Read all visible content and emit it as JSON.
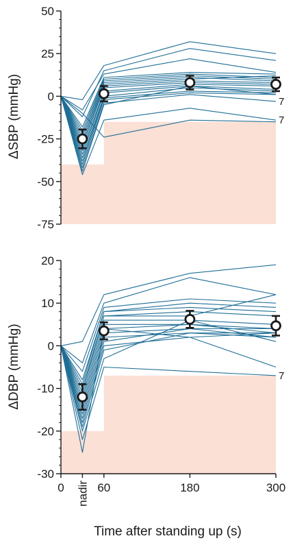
{
  "colors": {
    "subject_line": "#1f6e96",
    "threshold_fill": "#fbe0d6",
    "mean_marker_fill": "#ffffff",
    "mean_marker_stroke": "#1a1a1a",
    "axis": "#1a1a1a"
  },
  "chart_data": [
    {
      "type": "line",
      "title": "",
      "ylabel": "ΔSBP (mmHg)",
      "xlabel": "",
      "x_values": [
        0,
        30,
        60,
        180,
        300
      ],
      "x_tick_values": [
        0,
        30,
        60,
        180,
        300
      ],
      "x_tick_labels": [
        "0",
        "nadir",
        "60",
        "180",
        "300"
      ],
      "ylim": [
        -75,
        50
      ],
      "y_ticks": [
        -75,
        -50,
        -25,
        0,
        25,
        50
      ],
      "y_minor_step": 5,
      "threshold_region": [
        {
          "x_from": 0,
          "x_to": 60,
          "y_upper": -40
        },
        {
          "x_from": 60,
          "x_to": 300,
          "y_upper": -15
        }
      ],
      "subjects": [
        [
          0,
          -2,
          18,
          32,
          25
        ],
        [
          0,
          -12,
          15,
          28,
          21
        ],
        [
          0,
          -8,
          13,
          22,
          14
        ],
        [
          0,
          -18,
          11,
          14,
          13
        ],
        [
          0,
          -20,
          10,
          13,
          11
        ],
        [
          0,
          -22,
          9,
          12,
          10
        ],
        [
          0,
          -24,
          8,
          11,
          9
        ],
        [
          0,
          -26,
          7,
          10,
          12
        ],
        [
          0,
          -28,
          6,
          9,
          8
        ],
        [
          0,
          -30,
          5,
          8,
          7
        ],
        [
          0,
          -32,
          3,
          7,
          6
        ],
        [
          0,
          -34,
          2,
          6,
          4
        ],
        [
          0,
          -36,
          0,
          5,
          3
        ],
        [
          0,
          -38,
          -1,
          3,
          2
        ],
        [
          0,
          -40,
          -2,
          2,
          1
        ],
        [
          0,
          -42,
          -4,
          1,
          -3
        ],
        [
          0,
          -44,
          -5,
          6,
          1
        ],
        [
          0,
          -46,
          -14,
          -7,
          -14
        ],
        [
          0,
          -10,
          -24,
          -14,
          -15
        ]
      ],
      "mean": {
        "x": [
          30,
          60,
          180,
          300
        ],
        "y": [
          -25,
          1.5,
          8,
          7
        ],
        "error": [
          5.5,
          4.5,
          4,
          4
        ]
      },
      "annotations": [
        {
          "text": "7",
          "x": 300,
          "y": -3
        },
        {
          "text": "7",
          "x": 300,
          "y": -14
        }
      ]
    },
    {
      "type": "line",
      "title": "",
      "ylabel": "ΔDBP (mmHg)",
      "xlabel": "Time after standing up (s)",
      "x_values": [
        0,
        30,
        60,
        180,
        300
      ],
      "x_tick_values": [
        0,
        30,
        60,
        180,
        300
      ],
      "x_tick_labels": [
        "0",
        "nadir",
        "60",
        "180",
        "300"
      ],
      "ylim": [
        -30,
        20
      ],
      "y_ticks": [
        -30,
        -20,
        -10,
        0,
        10,
        20
      ],
      "y_minor_step": 2,
      "threshold_region": [
        {
          "x_from": 0,
          "x_to": 60,
          "y_upper": -20
        },
        {
          "x_from": 60,
          "x_to": 300,
          "y_upper": -7
        }
      ],
      "subjects": [
        [
          0,
          1,
          12,
          17,
          19
        ],
        [
          0,
          -4,
          10,
          16,
          12
        ],
        [
          0,
          -6,
          9,
          11,
          10
        ],
        [
          0,
          -8,
          8,
          10,
          9
        ],
        [
          0,
          -9,
          8,
          9,
          8
        ],
        [
          0,
          -10,
          7,
          8,
          7
        ],
        [
          0,
          -11,
          7,
          7,
          12
        ],
        [
          0,
          -12,
          6,
          6,
          5
        ],
        [
          0,
          -13,
          5,
          5,
          4
        ],
        [
          0,
          -14,
          4,
          5,
          3
        ],
        [
          0,
          -15,
          3,
          4,
          4
        ],
        [
          0,
          -16,
          2,
          3,
          3
        ],
        [
          0,
          -17,
          1,
          4,
          2
        ],
        [
          0,
          -18,
          0,
          2,
          3
        ],
        [
          0,
          -19,
          -1,
          3,
          2
        ],
        [
          0,
          -20,
          -3,
          6,
          1
        ],
        [
          0,
          -22,
          -5,
          -6,
          -7
        ],
        [
          0,
          -25,
          4,
          2,
          -5
        ]
      ],
      "mean": {
        "x": [
          30,
          60,
          180,
          300
        ],
        "y": [
          -12,
          3.5,
          6.2,
          4.7
        ],
        "error": [
          3,
          2,
          2,
          2.3
        ]
      },
      "annotations": [
        {
          "text": "7",
          "x": 300,
          "y": -7
        }
      ]
    }
  ]
}
